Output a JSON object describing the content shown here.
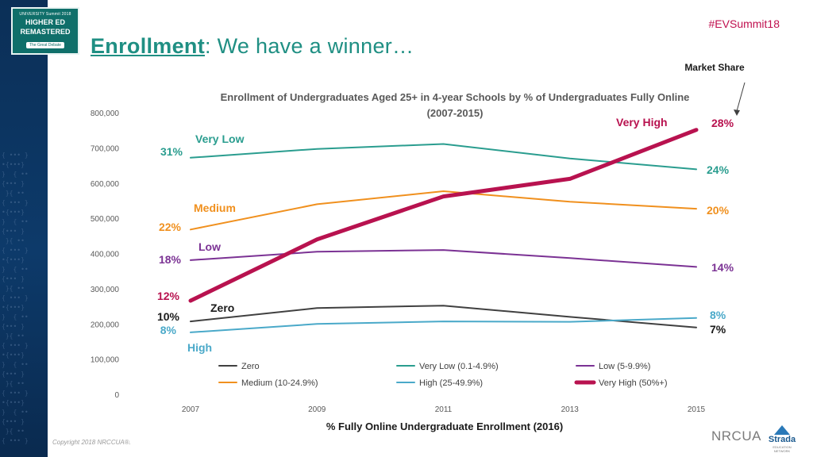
{
  "slide": {
    "hashtag": "#EVSummit18",
    "title_keyword": "Enrollment",
    "title_rest": " We have a winner…",
    "copyright": "Copyright 2018 NRCCUA®.",
    "logo": {
      "line1": "UNIVERSITY Summit 2018",
      "line2": "HIGHER ED",
      "line3": "REMASTERED",
      "line4": "The Great Debate"
    },
    "footer_logos": {
      "nrccua": "NRCUA",
      "strada": "Strada",
      "strada_sub": "EDUCATION NETWORK"
    }
  },
  "chart_data": {
    "type": "line",
    "title": "Enrollment of Undergraduates Aged 25+ in 4-year Schools by % of Undergraduates Fully Online",
    "subtitle": "(2007-2015)",
    "xlabel": "% Fully Online Undergraduate Enrollment (2016)",
    "ylabel": "",
    "ylim": [
      0,
      800000
    ],
    "yticks": [
      "0",
      "100,000",
      "200,000",
      "300,000",
      "400,000",
      "500,000",
      "600,000",
      "700,000",
      "800,000"
    ],
    "x": [
      "2007",
      "2009",
      "2011",
      "2013",
      "2015"
    ],
    "grid": false,
    "legend_position": "bottom",
    "market_share_label": "Market Share",
    "series": [
      {
        "name": "Zero",
        "legend": "Zero",
        "color": "#404040",
        "values": [
          207000,
          245000,
          252000,
          220000,
          190000
        ],
        "start_label": "10%",
        "end_label": "7%",
        "series_label": "Zero"
      },
      {
        "name": "Very Low",
        "legend": "Very Low (0.1-4.9%)",
        "color": "#2a9d8f",
        "values": [
          672000,
          697000,
          711000,
          670000,
          639000
        ],
        "start_label": "31%",
        "end_label": "24%",
        "series_label": "Very Low"
      },
      {
        "name": "Low",
        "legend": "Low (5-9.9%)",
        "color": "#7b3294",
        "values": [
          381000,
          405000,
          410000,
          387000,
          362000
        ],
        "start_label": "18%",
        "end_label": "14%",
        "series_label": "Low"
      },
      {
        "name": "Medium",
        "legend": "Medium (10-24.9%)",
        "color": "#f0901e",
        "values": [
          468000,
          540000,
          577000,
          547000,
          527000
        ],
        "start_label": "22%",
        "end_label": "20%",
        "series_label": "Medium"
      },
      {
        "name": "High",
        "legend": "High (25-49.9%)",
        "color": "#4aa9c9",
        "values": [
          176000,
          200000,
          207000,
          206000,
          217000
        ],
        "start_label": "8%",
        "end_label": "8%",
        "series_label": "High"
      },
      {
        "name": "Very High",
        "legend": "Very High (50%+)",
        "color": "#b8124f",
        "values": [
          266000,
          440000,
          562000,
          612000,
          751000
        ],
        "start_label": "12%",
        "end_label": "28%",
        "series_label": "Very High"
      }
    ]
  }
}
